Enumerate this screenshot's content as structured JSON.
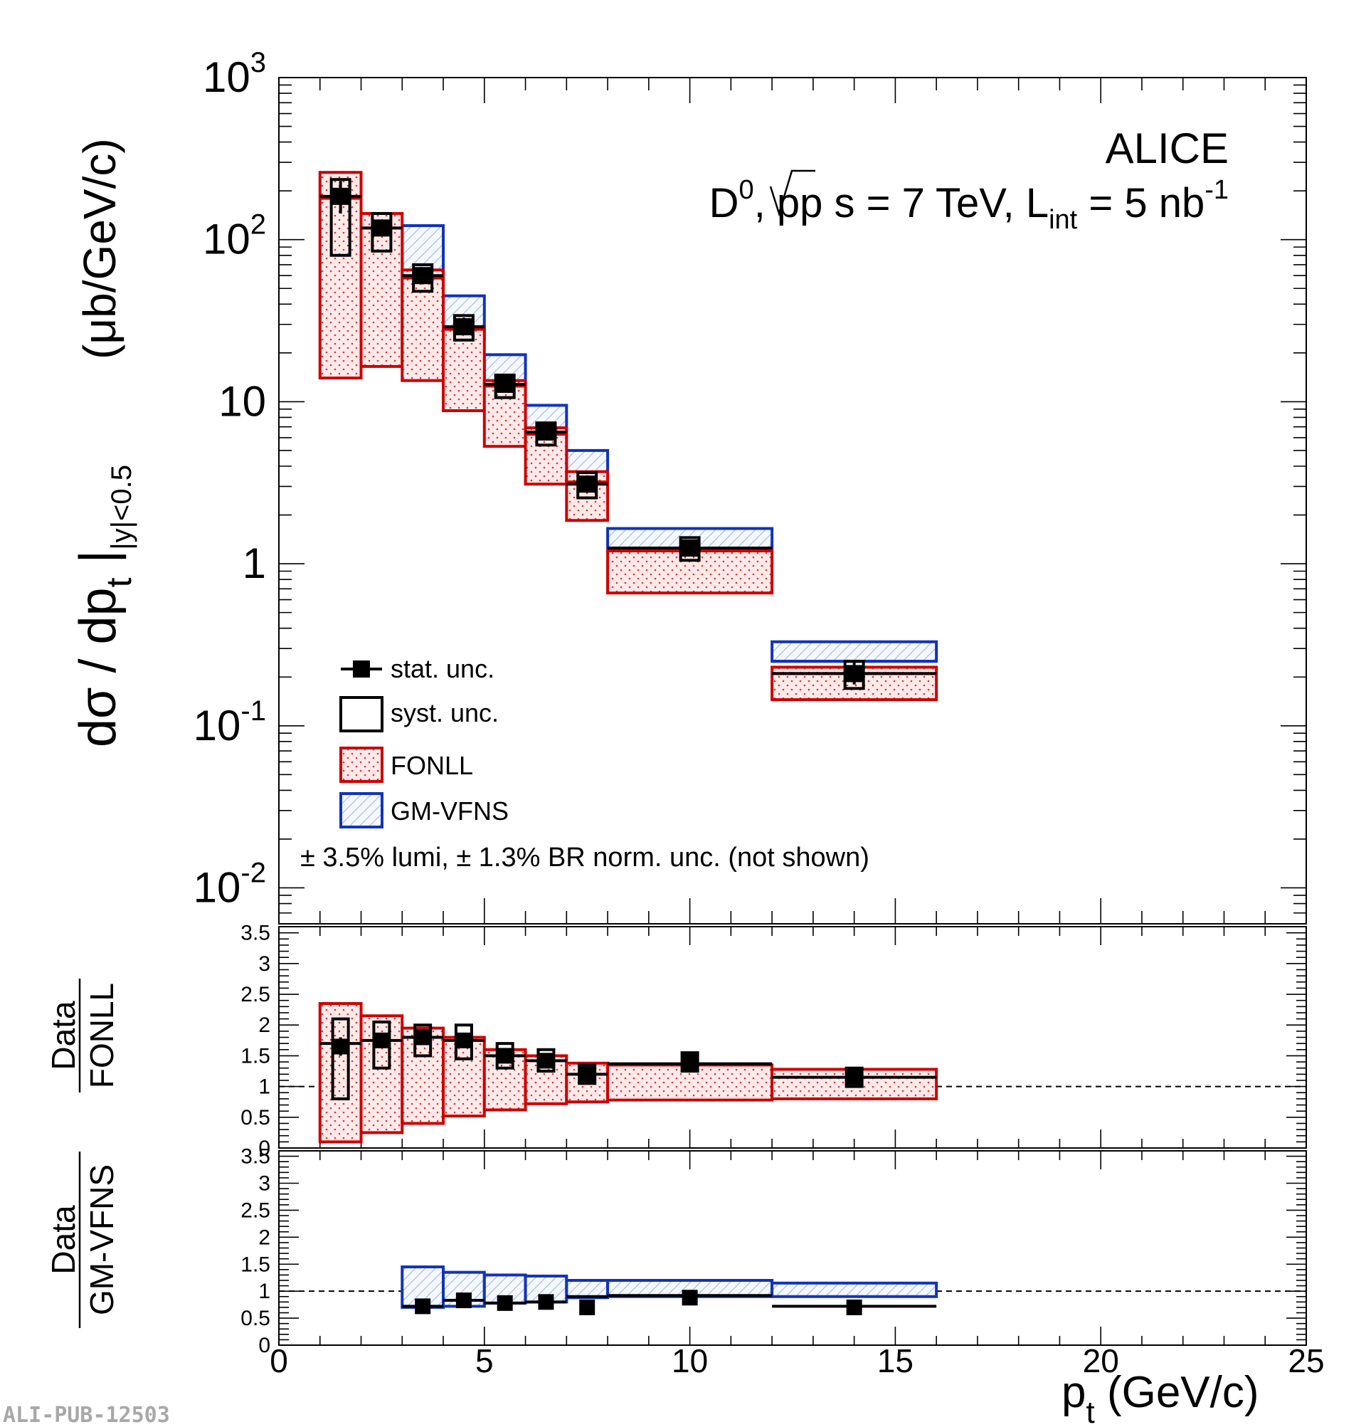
{
  "chart_data": {
    "type": "bar",
    "experiment_label": "ALICE",
    "subtitle_parts": {
      "particle": "D",
      "particle_sup": "0",
      "mid": ", pp ",
      "sqrt": "s",
      "energy": " = 7 TeV, L",
      "lumi_sub": "int",
      "lumi_val": " = 5 nb",
      "lumi_sup": "-1"
    },
    "ylabel_main": {
      "lead": "dσ / dp",
      "sub_t": "t",
      "bar": " |",
      "sub_y": "|y|<0.5",
      "unit": "(μb/GeV/c)"
    },
    "xlabel": {
      "p": "p",
      "sub": "t",
      "unit": " (GeV/c)"
    },
    "ratio1_label": {
      "num": "Data",
      "den": "FONLL"
    },
    "ratio2_label": {
      "num": "Data",
      "den": "GM-VFNS"
    },
    "note": "± 3.5% lumi, ± 1.3% BR norm. unc. (not shown)",
    "watermark": "ALI-PUB-12503",
    "legend": [
      {
        "key": "stat",
        "label": "stat. unc."
      },
      {
        "key": "syst",
        "label": "syst. unc."
      },
      {
        "key": "fonll",
        "label": "FONLL"
      },
      {
        "key": "gmvfns",
        "label": "GM-VFNS"
      }
    ],
    "colors": {
      "fonll": "#cc0000",
      "gmvfns": "#1133bb",
      "data": "#000000",
      "fonll_fill": "#ffe4e4",
      "gmvfns_fill": "#eef3ff"
    },
    "xlim": [
      0,
      25
    ],
    "x_ticks": [
      0,
      5,
      10,
      15,
      20,
      25
    ],
    "ylim_main": [
      0.006,
      1000
    ],
    "y_ticks_main": [
      {
        "v": 0.01,
        "base": "10",
        "exp": "-2"
      },
      {
        "v": 0.1,
        "base": "10",
        "exp": "-1"
      },
      {
        "v": 1,
        "base": "1",
        "exp": ""
      },
      {
        "v": 10,
        "base": "10",
        "exp": ""
      },
      {
        "v": 100,
        "base": "10",
        "exp": "2"
      },
      {
        "v": 1000,
        "base": "10",
        "exp": "3"
      }
    ],
    "ylim_ratio": [
      0,
      3.6
    ],
    "y_ticks_ratio": [
      "0",
      "0.5",
      "1",
      "1.5",
      "2",
      "2.5",
      "3",
      "3.5"
    ],
    "bins": [
      {
        "lo": 1,
        "hi": 2,
        "x": 1.5,
        "y": 185,
        "stat_lo": 145,
        "stat_hi": 230,
        "syst_lo": 80,
        "syst_hi": 235,
        "fonll_lo": 14,
        "fonll_hi": 260,
        "fonll_c": 180,
        "gm_lo": null,
        "gm_hi": null,
        "gm_c": null,
        "r1": 1.65,
        "r1_stat": 0.15,
        "r1_syst_lo": 0.8,
        "r1_syst_hi": 2.1,
        "r1_band_lo": 0.1,
        "r1_band_hi": 2.35,
        "r1_c": 1.7,
        "r2": null,
        "r2_stat": null,
        "r2_band_lo": null,
        "r2_band_hi": null,
        "r2_c": null
      },
      {
        "lo": 2,
        "hi": 3,
        "x": 2.5,
        "y": 118,
        "stat_lo": 105,
        "stat_hi": 132,
        "syst_lo": 85,
        "syst_hi": 145,
        "fonll_lo": 16.5,
        "fonll_hi": 145,
        "fonll_c": 118,
        "gm_lo": null,
        "gm_hi": null,
        "gm_c": null,
        "r1": 1.75,
        "r1_stat": 0.12,
        "r1_syst_lo": 1.3,
        "r1_syst_hi": 2.05,
        "r1_band_lo": 0.25,
        "r1_band_hi": 2.15,
        "r1_c": 1.75,
        "r2": null,
        "r2_stat": null,
        "r2_band_lo": null,
        "r2_band_hi": null,
        "r2_c": null
      },
      {
        "lo": 3,
        "hi": 4,
        "x": 3.5,
        "y": 60,
        "stat_lo": 53,
        "stat_hi": 67,
        "syst_lo": 48,
        "syst_hi": 70,
        "fonll_lo": 13.5,
        "fonll_hi": 65,
        "fonll_c": 58,
        "gm_lo": 58,
        "gm_hi": 122,
        "gm_c": 62,
        "r1": 1.8,
        "r1_stat": 0.12,
        "r1_syst_lo": 1.5,
        "r1_syst_hi": 2.0,
        "r1_band_lo": 0.4,
        "r1_band_hi": 1.95,
        "r1_c": 1.8,
        "r2": 0.72,
        "r2_stat": 0.06,
        "r2_band_lo": 0.7,
        "r2_band_hi": 1.45,
        "r2_c": 0.72
      },
      {
        "lo": 4,
        "hi": 5,
        "x": 4.5,
        "y": 29,
        "stat_lo": 26,
        "stat_hi": 33,
        "syst_lo": 24,
        "syst_hi": 34,
        "fonll_lo": 8.8,
        "fonll_hi": 29,
        "fonll_c": 28,
        "gm_lo": 24,
        "gm_hi": 45,
        "gm_c": 25,
        "r1": 1.75,
        "r1_stat": 0.1,
        "r1_syst_lo": 1.45,
        "r1_syst_hi": 2.0,
        "r1_band_lo": 0.52,
        "r1_band_hi": 1.8,
        "r1_c": 1.75,
        "r2": 0.83,
        "r2_stat": 0.06,
        "r2_band_lo": 0.72,
        "r2_band_hi": 1.35,
        "r2_c": 0.83
      },
      {
        "lo": 5,
        "hi": 6,
        "x": 5.5,
        "y": 12.8,
        "stat_lo": 11.6,
        "stat_hi": 14.1,
        "syst_lo": 10.6,
        "syst_hi": 14.6,
        "fonll_lo": 5.3,
        "fonll_hi": 13.5,
        "fonll_c": 12.5,
        "gm_lo": 11.5,
        "gm_hi": 19.5,
        "gm_c": 11.8,
        "r1": 1.5,
        "r1_stat": 0.1,
        "r1_syst_lo": 1.3,
        "r1_syst_hi": 1.7,
        "r1_band_lo": 0.62,
        "r1_band_hi": 1.6,
        "r1_c": 1.5,
        "r2": 0.78,
        "r2_stat": 0.05,
        "r2_band_lo": 0.78,
        "r2_band_hi": 1.3,
        "r2_c": 0.78
      },
      {
        "lo": 6,
        "hi": 7,
        "x": 6.5,
        "y": 6.5,
        "stat_lo": 5.9,
        "stat_hi": 7.1,
        "syst_lo": 5.4,
        "syst_hi": 7.4,
        "fonll_lo": 3.1,
        "fonll_hi": 6.9,
        "fonll_c": 6.3,
        "gm_lo": 6.0,
        "gm_hi": 9.5,
        "gm_c": 6.2,
        "r1": 1.42,
        "r1_stat": 0.1,
        "r1_syst_lo": 1.25,
        "r1_syst_hi": 1.6,
        "r1_band_lo": 0.72,
        "r1_band_hi": 1.5,
        "r1_c": 1.42,
        "r2": 0.8,
        "r2_stat": 0.05,
        "r2_band_lo": 0.8,
        "r2_band_hi": 1.28,
        "r2_c": 0.8
      },
      {
        "lo": 7,
        "hi": 8,
        "x": 7.5,
        "y": 3.1,
        "stat_lo": 2.75,
        "stat_hi": 3.5,
        "syst_lo": 2.55,
        "syst_hi": 3.65,
        "fonll_lo": 1.85,
        "fonll_hi": 3.7,
        "fonll_c": 3.2,
        "gm_lo": 3.4,
        "gm_hi": 5.0,
        "gm_c": 3.45,
        "r1": 1.2,
        "r1_stat": 0.1,
        "r1_syst_lo": 1.05,
        "r1_syst_hi": 1.35,
        "r1_band_lo": 0.75,
        "r1_band_hi": 1.38,
        "r1_c": 1.2,
        "r2": 0.7,
        "r2_stat": 0.05,
        "r2_band_lo": 0.88,
        "r2_band_hi": 1.2,
        "r2_c": 0.9
      },
      {
        "lo": 8,
        "hi": 12,
        "x": 10,
        "y": 1.25,
        "stat_lo": 1.12,
        "stat_hi": 1.4,
        "syst_lo": 1.05,
        "syst_hi": 1.45,
        "fonll_lo": 0.66,
        "fonll_hi": 1.22,
        "fonll_c": 1.2,
        "gm_lo": 1.2,
        "gm_hi": 1.65,
        "gm_c": 1.23,
        "r1": 1.4,
        "r1_stat": 0.1,
        "r1_syst_lo": 1.25,
        "r1_syst_hi": 1.55,
        "r1_band_lo": 0.78,
        "r1_band_hi": 1.35,
        "r1_c": 1.37,
        "r2": 0.88,
        "r2_stat": 0.05,
        "r2_band_lo": 0.9,
        "r2_band_hi": 1.2,
        "r2_c": 0.92
      },
      {
        "lo": 12,
        "hi": 16,
        "x": 14,
        "y": 0.21,
        "stat_lo": 0.18,
        "stat_hi": 0.245,
        "syst_lo": 0.17,
        "syst_hi": 0.25,
        "fonll_lo": 0.145,
        "fonll_hi": 0.23,
        "fonll_c": 0.21,
        "gm_lo": 0.25,
        "gm_hi": 0.33,
        "gm_c": 0.25,
        "r1": 1.15,
        "r1_stat": 0.1,
        "r1_syst_lo": 1.0,
        "r1_syst_hi": 1.3,
        "r1_band_lo": 0.8,
        "r1_band_hi": 1.28,
        "r1_c": 1.15,
        "r2": 0.7,
        "r2_stat": 0.05,
        "r2_band_lo": 0.9,
        "r2_band_hi": 1.15,
        "r2_c": 0.72
      }
    ]
  }
}
